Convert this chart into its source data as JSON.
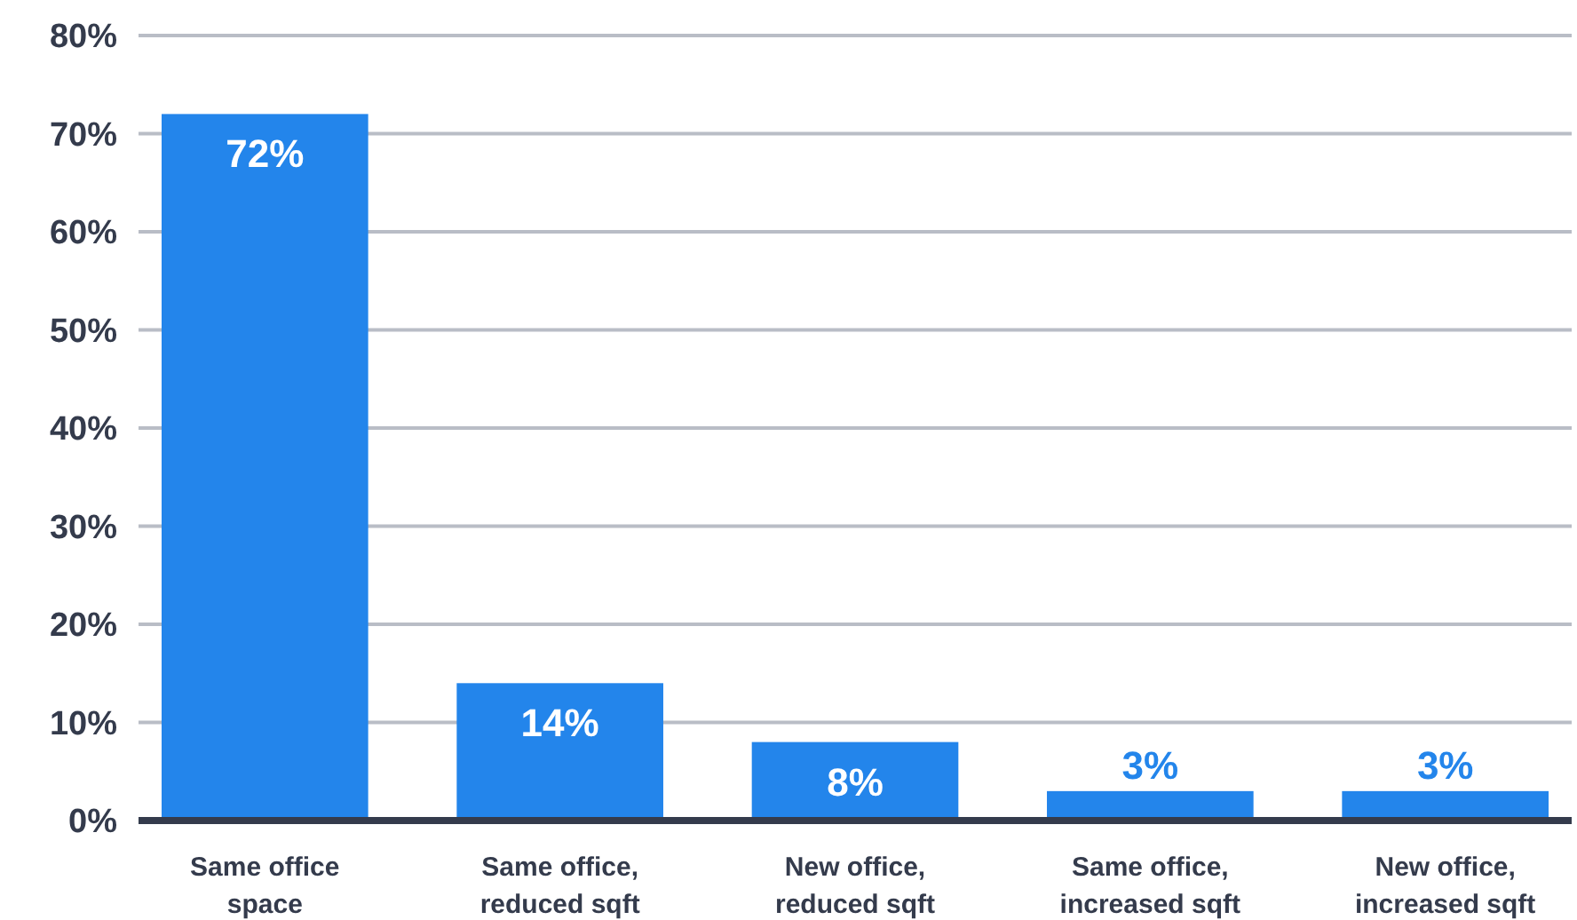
{
  "chart_data": {
    "type": "bar",
    "categories": [
      "Same office space",
      "Same office, reduced sqft",
      "New office, reduced sqft",
      "Same office, increased sqft",
      "New office, increased sqft"
    ],
    "values": [
      72,
      14,
      8,
      3,
      3
    ],
    "value_labels": [
      "72%",
      "14%",
      "8%",
      "3%",
      "3%"
    ],
    "color": "#2385eb",
    "ylim": [
      0,
      80
    ],
    "yticks": [
      {
        "value": 0,
        "label": "0%"
      },
      {
        "value": 10,
        "label": "10%"
      },
      {
        "value": 20,
        "label": "20%"
      },
      {
        "value": 30,
        "label": "30%"
      },
      {
        "value": 40,
        "label": "40%"
      },
      {
        "value": 50,
        "label": "50%"
      },
      {
        "value": 60,
        "label": "60%"
      },
      {
        "value": 70,
        "label": "70%"
      },
      {
        "value": 80,
        "label": "80%"
      }
    ],
    "grid": "y"
  }
}
